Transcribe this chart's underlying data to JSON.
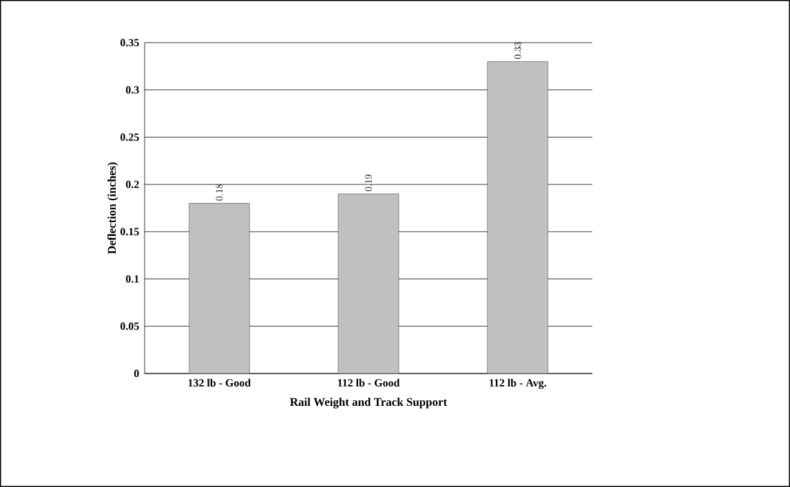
{
  "chart_data": {
    "type": "bar",
    "xlabel": "Rail Weight and Track Support",
    "ylabel": "Deflection (inches)",
    "categories": [
      "132 lb - Good",
      "112 lb - Good",
      "112 lb - Avg."
    ],
    "values": [
      0.18,
      0.19,
      0.33
    ],
    "color": "#c0c0c0",
    "ylim": [
      0,
      0.35
    ],
    "yticks": [
      0,
      0.05,
      0.1,
      0.15,
      0.2,
      0.25,
      0.3,
      0.35
    ],
    "grid": "y",
    "data_labels": true
  }
}
